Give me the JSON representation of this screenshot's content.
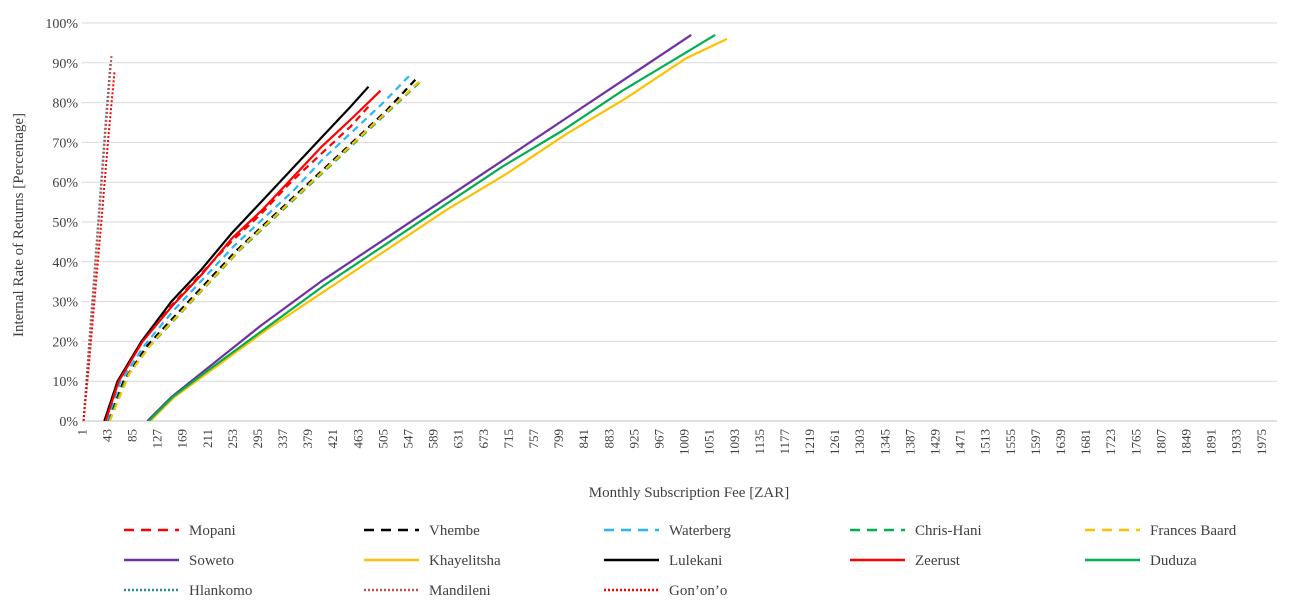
{
  "chart_data": {
    "type": "line",
    "title": "",
    "xlabel": "Monthly Subscription Fee [ZAR]",
    "ylabel": "Internal Rate of Returns [Percentage]",
    "xlim": [
      1,
      2000
    ],
    "ylim": [
      0,
      100
    ],
    "y_unit": "%",
    "y_ticks": [
      0,
      10,
      20,
      30,
      40,
      50,
      60,
      70,
      80,
      90,
      100
    ],
    "x_tick_labels": [
      "1",
      "43",
      "85",
      "127",
      "169",
      "211",
      "253",
      "295",
      "337",
      "379",
      "421",
      "463",
      "505",
      "547",
      "589",
      "631",
      "673",
      "715",
      "757",
      "799",
      "841",
      "883",
      "925",
      "967",
      "1009",
      "1051",
      "1093",
      "1135",
      "1177",
      "1219",
      "1261",
      "1303",
      "1345",
      "1387",
      "1429",
      "1471",
      "1513",
      "1555",
      "1597",
      "1639",
      "1681",
      "1723",
      "1765",
      "1807",
      "1849",
      "1891",
      "1933",
      "1975"
    ],
    "grid": true,
    "legend_position": "bottom",
    "series": [
      {
        "name": "Mopani",
        "color": "#ff0000",
        "dash": "dashed",
        "x": [
          38,
          60,
          100,
          150,
          200,
          250,
          300,
          350,
          400,
          450,
          480
        ],
        "y": [
          0,
          10,
          20,
          29,
          37,
          45,
          52,
          60,
          67,
          74,
          79
        ]
      },
      {
        "name": "Vhembe",
        "color": "#000000",
        "dash": "dashed",
        "x": [
          45,
          70,
          110,
          160,
          210,
          260,
          310,
          360,
          410,
          460,
          510,
          560
        ],
        "y": [
          0,
          10,
          19,
          27,
          35,
          43,
          50,
          57,
          64,
          71,
          78,
          86
        ]
      },
      {
        "name": "Waterberg",
        "color": "#29b6f6",
        "dash": "dashed",
        "x": [
          42,
          65,
          105,
          155,
          205,
          255,
          305,
          355,
          405,
          455,
          505,
          550
        ],
        "y": [
          0,
          10,
          19,
          28,
          36,
          44,
          51,
          58,
          66,
          73,
          80,
          87
        ]
      },
      {
        "name": "Chris-Hani",
        "color": "#00b050",
        "dash": "dashed",
        "x": [
          46,
          75,
          115,
          165,
          215,
          265,
          315,
          365,
          415,
          465,
          515,
          565
        ],
        "y": [
          0,
          11,
          19,
          27,
          35,
          43,
          50,
          57,
          64,
          71,
          78,
          85
        ]
      },
      {
        "name": "Frances Baard",
        "color": "#ffc000",
        "dash": "dashed",
        "x": [
          47,
          80,
          120,
          170,
          220,
          270,
          320,
          370,
          420,
          470,
          520,
          570
        ],
        "y": [
          0,
          12,
          20,
          28,
          36,
          44,
          51,
          58,
          65,
          72,
          79,
          86
        ]
      },
      {
        "name": "Soweto",
        "color": "#7030a0",
        "dash": "solid",
        "x": [
          110,
          150,
          200,
          300,
          400,
          500,
          600,
          700,
          800,
          900,
          1000,
          1020
        ],
        "y": [
          0,
          6,
          12,
          24,
          35,
          45,
          55,
          65,
          75,
          85,
          95,
          97
        ]
      },
      {
        "name": "Khayelitsha",
        "color": "#ffc000",
        "dash": "solid",
        "x": [
          115,
          155,
          210,
          310,
          410,
          510,
          610,
          710,
          810,
          910,
          1010,
          1080
        ],
        "y": [
          0,
          6,
          12,
          23,
          33,
          43,
          53,
          62,
          72,
          81,
          91,
          96
        ]
      },
      {
        "name": "Lulekani",
        "color": "#000000",
        "dash": "solid",
        "x": [
          38,
          60,
          100,
          150,
          200,
          250,
          300,
          350,
          400,
          450,
          480
        ],
        "y": [
          0,
          10,
          20,
          30,
          38,
          47,
          55,
          63,
          71,
          79,
          84
        ]
      },
      {
        "name": "Zeerust",
        "color": "#ff0000",
        "dash": "solid",
        "x": [
          40,
          62,
          102,
          152,
          202,
          252,
          302,
          352,
          402,
          452,
          500
        ],
        "y": [
          0,
          10,
          20,
          29,
          37,
          46,
          53,
          61,
          69,
          76,
          83
        ]
      },
      {
        "name": "Duduza",
        "color": "#00b050",
        "dash": "solid",
        "x": [
          112,
          152,
          205,
          305,
          405,
          505,
          605,
          705,
          805,
          905,
          1005,
          1060
        ],
        "y": [
          0,
          6,
          12,
          23,
          34,
          44,
          54,
          64,
          73,
          83,
          92,
          97
        ]
      },
      {
        "name": "Hlankomo",
        "color": "#31859c",
        "dash": "dotted",
        "x": [
          3,
          10,
          20,
          30,
          40,
          48
        ],
        "y": [
          0,
          15,
          35,
          55,
          75,
          90
        ]
      },
      {
        "name": "Mandileni",
        "color": "#c0504d",
        "dash": "dotted",
        "x": [
          3,
          11,
          21,
          31,
          41,
          50
        ],
        "y": [
          0,
          15,
          35,
          55,
          75,
          92
        ]
      },
      {
        "name": "Gon’on’o",
        "color": "#ff0000",
        "dash": "dotted",
        "x": [
          3,
          12,
          23,
          34,
          45,
          55
        ],
        "y": [
          0,
          14,
          33,
          52,
          72,
          88
        ]
      }
    ]
  }
}
